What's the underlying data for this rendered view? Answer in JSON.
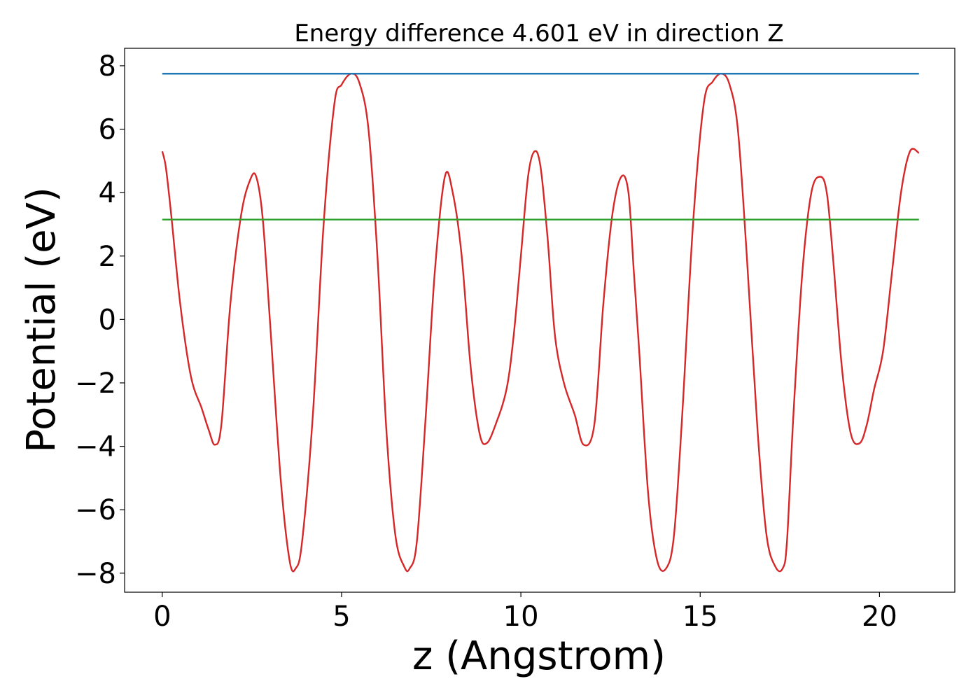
{
  "chart_data": {
    "type": "line",
    "title": "Energy difference 4.601 eV in direction Z",
    "xlabel": "z (Angstrom)",
    "ylabel": "Potential (eV)",
    "xlim": [
      -1.05,
      22.1
    ],
    "ylim": [
      -8.6,
      8.55
    ],
    "x_ticks": [
      0,
      5,
      10,
      15,
      20
    ],
    "y_ticks": [
      -8,
      -6,
      -4,
      -2,
      0,
      2,
      4,
      6,
      8
    ],
    "grid": false,
    "series": [
      {
        "color": "#d62728",
        "x": [
          0,
          0.1,
          0.25,
          0.5,
          0.8,
          1.1,
          1.3,
          1.47,
          1.65,
          1.9,
          2.2,
          2.45,
          2.62,
          2.8,
          3.0,
          3.3,
          3.55,
          3.72,
          3.9,
          4.2,
          4.5,
          4.8,
          5.0,
          5.27,
          5.5,
          5.75,
          6.0,
          6.25,
          6.5,
          6.75,
          6.9,
          7.1,
          7.35,
          7.6,
          7.88,
          8.1,
          8.35,
          8.6,
          8.85,
          9.05,
          9.3,
          9.6,
          9.8,
          10.0,
          10.2,
          10.38,
          10.55,
          10.75,
          10.95,
          11.2,
          11.5,
          11.75,
          12.05,
          12.3,
          12.55,
          12.8,
          13.0,
          13.15,
          13.3,
          13.55,
          13.8,
          14.05,
          14.27,
          14.5,
          14.8,
          15.1,
          15.35,
          15.6,
          15.82,
          16.05,
          16.3,
          16.6,
          16.85,
          17.1,
          17.3,
          17.42,
          17.6,
          17.85,
          18.1,
          18.35,
          18.53,
          18.7,
          18.95,
          19.2,
          19.45,
          19.65,
          19.85,
          20.1,
          20.35,
          20.6,
          20.85,
          21.1
        ],
        "y": [
          5.3,
          4.8,
          3.3,
          0.5,
          -1.8,
          -2.8,
          -3.5,
          -3.95,
          -3.3,
          0.5,
          3.3,
          4.4,
          4.5,
          3.2,
          0.0,
          -5.0,
          -7.6,
          -7.85,
          -7.0,
          -3.0,
          3.0,
          6.8,
          7.4,
          7.75,
          7.45,
          6.0,
          2.0,
          -3.5,
          -6.8,
          -7.8,
          -7.85,
          -7.0,
          -3.0,
          1.5,
          4.5,
          4.0,
          2.0,
          -1.5,
          -3.6,
          -3.9,
          -3.3,
          -2.2,
          -0.5,
          2.0,
          4.5,
          5.3,
          4.8,
          2.5,
          -0.5,
          -2.0,
          -3.0,
          -3.95,
          -3.3,
          0.5,
          3.3,
          4.5,
          4.0,
          1.5,
          -1.0,
          -5.5,
          -7.6,
          -7.85,
          -6.8,
          -3.0,
          3.0,
          6.8,
          7.5,
          7.75,
          7.4,
          6.0,
          2.0,
          -3.5,
          -6.8,
          -7.8,
          -7.85,
          -7.0,
          -3.0,
          1.5,
          4.0,
          4.5,
          4.0,
          2.0,
          -1.5,
          -3.6,
          -3.9,
          -3.3,
          -2.2,
          -1.0,
          1.5,
          4.0,
          5.3,
          5.25
        ]
      },
      {
        "color": "#1f77b4",
        "x": [
          0,
          21.1
        ],
        "y": [
          7.75,
          7.75
        ]
      },
      {
        "color": "#2ca02c",
        "x": [
          0,
          21.1
        ],
        "y": [
          3.15,
          3.15
        ]
      }
    ]
  }
}
